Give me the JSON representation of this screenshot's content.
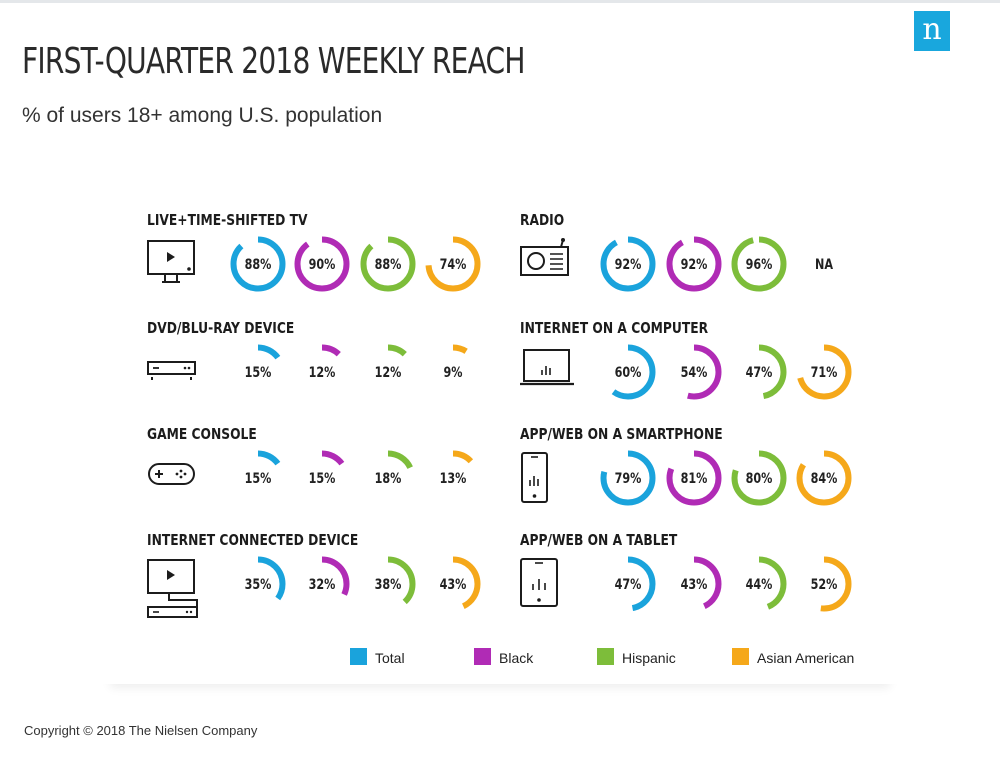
{
  "header": {
    "logo_letter": "n",
    "title": "FIRST-QUARTER 2018 WEEKLY REACH",
    "subtitle": "% of users 18+ among U.S. population"
  },
  "footer": {
    "copyright": "Copyright © 2018 The Nielsen Company"
  },
  "colors": {
    "Total": "#1aa3dc",
    "Black": "#b02bb5",
    "Hispanic": "#7dbd3a",
    "Asian American": "#f5a81a"
  },
  "icons": [
    "tv-icon",
    "radio-icon",
    "dvd-player-icon",
    "laptop-icon",
    "gamepad-icon",
    "smartphone-icon",
    "connected-device-icon",
    "tablet-icon"
  ],
  "chart_data": {
    "type": "donut-grid",
    "title": "FIRST-QUARTER 2018 WEEKLY REACH",
    "subtitle": "% of users 18+ among U.S. population",
    "unit": "%",
    "legend": [
      "Total",
      "Black",
      "Hispanic",
      "Asian American"
    ],
    "legend_position": "bottom",
    "categories": [
      {
        "name": "LIVE+TIME-SHIFTED TV",
        "icon": "tv-icon",
        "values": [
          88,
          90,
          88,
          74
        ],
        "labels": [
          "88%",
          "90%",
          "88%",
          "74%"
        ]
      },
      {
        "name": "RADIO",
        "icon": "radio-icon",
        "values": [
          92,
          92,
          96,
          null
        ],
        "labels": [
          "92%",
          "92%",
          "96%",
          "NA"
        ]
      },
      {
        "name": "DVD/BLU-RAY DEVICE",
        "icon": "dvd-player-icon",
        "values": [
          15,
          12,
          12,
          9
        ],
        "labels": [
          "15%",
          "12%",
          "12%",
          "9%"
        ]
      },
      {
        "name": "INTERNET ON A COMPUTER",
        "icon": "laptop-icon",
        "values": [
          60,
          54,
          47,
          71
        ],
        "labels": [
          "60%",
          "54%",
          "47%",
          "71%"
        ]
      },
      {
        "name": "GAME CONSOLE",
        "icon": "gamepad-icon",
        "values": [
          15,
          15,
          18,
          13
        ],
        "labels": [
          "15%",
          "15%",
          "18%",
          "13%"
        ]
      },
      {
        "name": "APP/WEB ON A SMARTPHONE",
        "icon": "smartphone-icon",
        "values": [
          79,
          81,
          80,
          84
        ],
        "labels": [
          "79%",
          "81%",
          "80%",
          "84%"
        ]
      },
      {
        "name": "INTERNET CONNECTED DEVICE",
        "icon": "connected-device-icon",
        "values": [
          35,
          32,
          38,
          43
        ],
        "labels": [
          "35%",
          "32%",
          "38%",
          "43%"
        ]
      },
      {
        "name": "APP/WEB ON A TABLET",
        "icon": "tablet-icon",
        "values": [
          47,
          43,
          44,
          52
        ],
        "labels": [
          "47%",
          "43%",
          "44%",
          "52%"
        ]
      }
    ]
  }
}
